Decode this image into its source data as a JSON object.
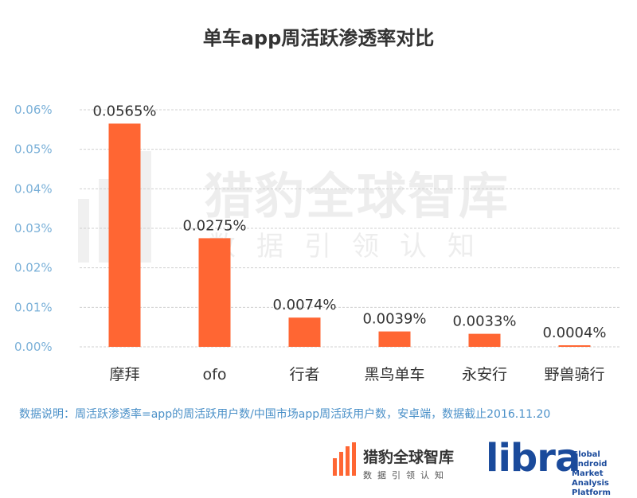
{
  "title": "单车app周活跃渗透率对比",
  "chart_data": {
    "type": "bar",
    "categories": [
      "摩拜",
      "ofo",
      "行者",
      "黑鸟单车",
      "永安行",
      "野兽骑行"
    ],
    "values": [
      0.0565,
      0.0275,
      0.0074,
      0.0039,
      0.0033,
      0.0004
    ],
    "data_labels": [
      "0.0565%",
      "0.0275%",
      "0.0074%",
      "0.0039%",
      "0.0033%",
      "0.0004%"
    ],
    "yticks": [
      "0.00%",
      "0.01%",
      "0.02%",
      "0.03%",
      "0.04%",
      "0.05%",
      "0.06%"
    ],
    "ylim": [
      0,
      0.06
    ],
    "grid": true,
    "colors": {
      "bar": "#ff6633",
      "grid": "#d0d0d0",
      "ytick": "#7ab0d8"
    }
  },
  "note": "数据说明：周活跃渗透率=app的周活跃用户数/中国市场app周活跃用户数，安卓端，数据截止2016.11.20",
  "watermark": {
    "main": "猎豹全球智库",
    "sub": "数据引领认知"
  },
  "logos": {
    "cheetah_name": "猎豹全球智库",
    "cheetah_sub": "数据引领认知",
    "libra": "libra",
    "libra_sub": [
      "Global",
      "Android Market",
      "Analysis Platform"
    ]
  }
}
